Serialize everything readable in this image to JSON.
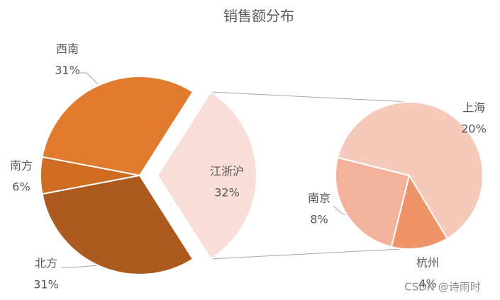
{
  "chart_data": {
    "type": "pie-of-pie",
    "title": "销售额分布",
    "categories": [
      "西南",
      "南方",
      "北方",
      "江浙沪"
    ],
    "values": [
      31,
      6,
      31,
      32
    ],
    "value_labels": [
      "31%",
      "6%",
      "31%",
      "32%"
    ],
    "colors": [
      "#e07b2e",
      "#cf6c22",
      "#ad5a20",
      "#fadfd8"
    ],
    "sub_pie": {
      "categories": [
        "上海",
        "杭州",
        "南京"
      ],
      "values": [
        20,
        4,
        8
      ],
      "value_labels": [
        "20%",
        "4%",
        "8%"
      ],
      "colors": [
        "#f6cabb",
        "#ef9469",
        "#f2b29b"
      ]
    }
  },
  "watermark": "CSDN @诗雨时"
}
